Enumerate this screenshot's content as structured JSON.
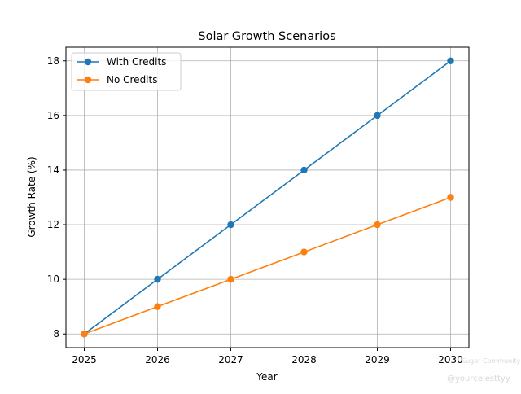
{
  "chart_data": {
    "type": "line",
    "title": "Solar Growth Scenarios",
    "xlabel": "Year",
    "ylabel": "Growth Rate (%)",
    "x": [
      2025,
      2026,
      2027,
      2028,
      2029,
      2030
    ],
    "xticks": [
      "2025",
      "2026",
      "2027",
      "2028",
      "2029",
      "2030"
    ],
    "yticks": [
      8,
      10,
      12,
      14,
      16,
      18
    ],
    "xlim": [
      2024.75,
      2030.25
    ],
    "ylim": [
      7.5,
      18.5
    ],
    "grid": true,
    "legend_position": "top-left",
    "series": [
      {
        "name": "With Credits",
        "values": [
          8,
          10,
          12,
          14,
          16,
          18
        ],
        "color": "#1f77b4",
        "marker": "circle"
      },
      {
        "name": "No Credits",
        "values": [
          8,
          9,
          10,
          11,
          12,
          13
        ],
        "color": "#ff7f0e",
        "marker": "circle"
      }
    ]
  },
  "watermark": {
    "line1": "Sugar Community",
    "line2": "@yourcelesttyy"
  }
}
